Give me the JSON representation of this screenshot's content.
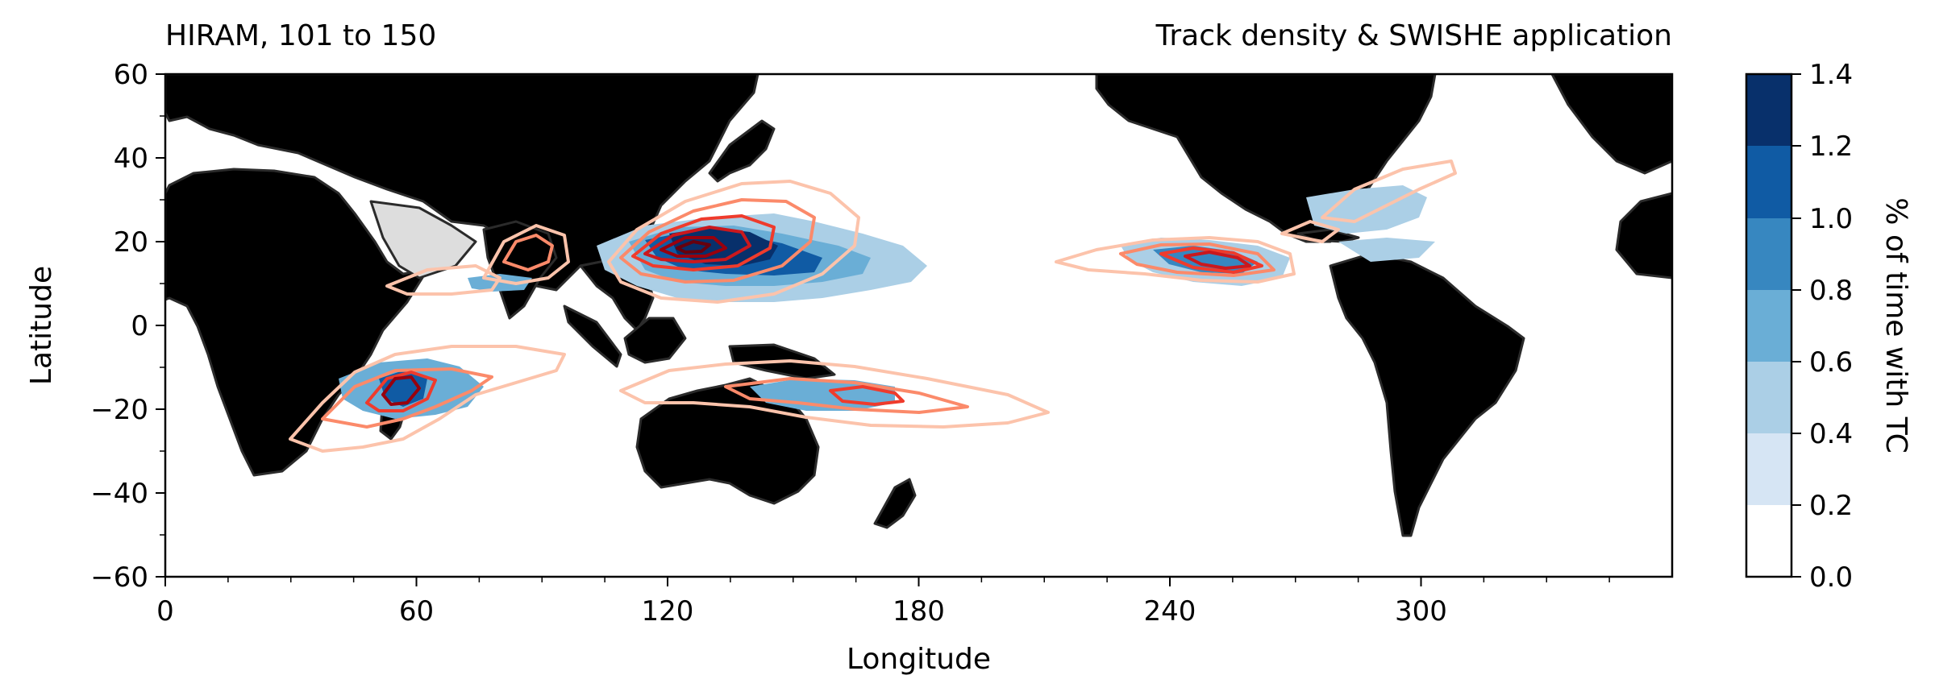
{
  "title_left": "HIRAM, 101 to 150",
  "title_right": "Track density & SWISHE application",
  "xlabel": "Longitude",
  "ylabel": "Latitude",
  "colorbar_label": "% of time with TC",
  "x_ticks": [
    "0",
    "60",
    "120",
    "180",
    "240",
    "300"
  ],
  "y_ticks": [
    "60",
    "40",
    "20",
    "0",
    "−20",
    "−40",
    "−60"
  ],
  "colorbar_ticks": [
    "1.4",
    "1.2",
    "1.0",
    "0.8",
    "0.6",
    "0.4",
    "0.2",
    "0.0"
  ],
  "colors": {
    "land": "#dddddd",
    "coast": "#2b2b2b",
    "density_scale": [
      "#ffffff",
      "#d6e5f4",
      "#abcfe6",
      "#6aaed6",
      "#3787c0",
      "#105ba4",
      "#08306b"
    ],
    "contour_scale": [
      "#fcc3ab",
      "#fb8a6a",
      "#ef3b2c",
      "#cb181d",
      "#99000d",
      "#67000d"
    ]
  },
  "chart_data": {
    "type": "map",
    "projection": "plate-carree",
    "xlim": [
      0,
      360
    ],
    "ylim": [
      -60,
      60
    ],
    "colorbar_range": [
      0.0,
      1.4
    ],
    "colorbar_levels": [
      0.0,
      0.2,
      0.4,
      0.6,
      0.8,
      1.0,
      1.2,
      1.4
    ]
  }
}
